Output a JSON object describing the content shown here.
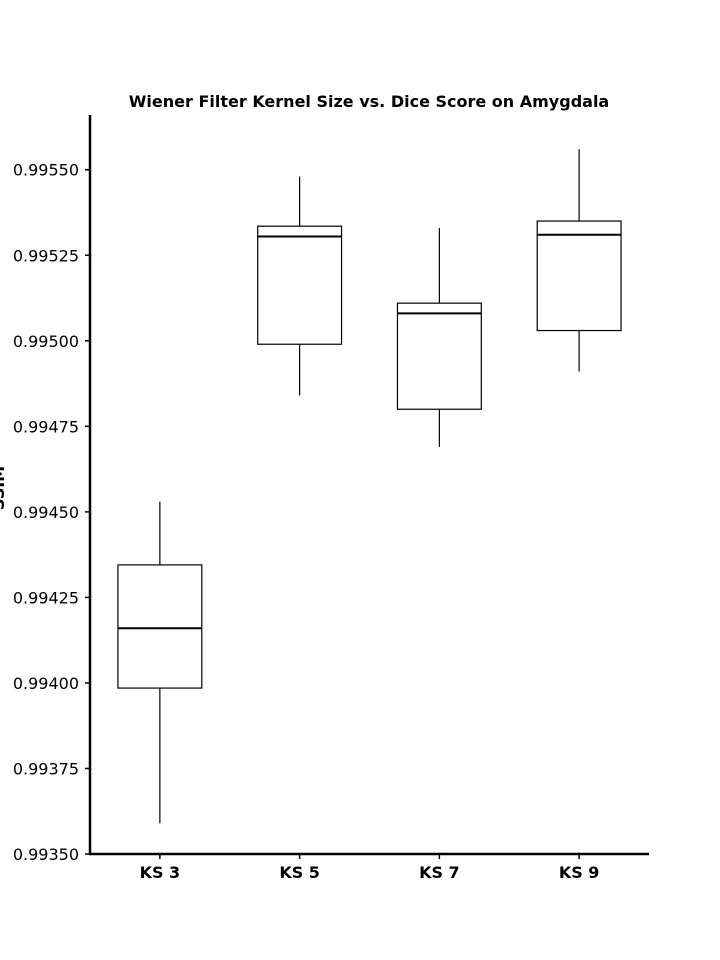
{
  "chart_data": {
    "type": "box",
    "title": "Wiener Filter Kernel Size vs. Dice Score on Amygdala",
    "xlabel": "",
    "ylabel": "SSIM",
    "ylim": [
      0.9935,
      0.99566
    ],
    "yticks": [
      "0.99350",
      "0.99375",
      "0.99400",
      "0.99425",
      "0.99450",
      "0.99475",
      "0.99500",
      "0.99525",
      "0.99550"
    ],
    "ytick_values": [
      0.9935,
      0.99375,
      0.994,
      0.99425,
      0.9945,
      0.99475,
      0.995,
      0.99525,
      0.9955
    ],
    "categories": [
      "KS 3",
      "KS 5",
      "KS 7",
      "KS 9"
    ],
    "boxes": [
      {
        "category": "KS 3",
        "whisker_low": 0.99359,
        "q1": 0.993985,
        "median": 0.99416,
        "q3": 0.994345,
        "whisker_high": 0.99453
      },
      {
        "category": "KS 5",
        "whisker_low": 0.99484,
        "q1": 0.99499,
        "median": 0.995305,
        "q3": 0.995335,
        "whisker_high": 0.99548
      },
      {
        "category": "KS 7",
        "whisker_low": 0.99469,
        "q1": 0.9948,
        "median": 0.99508,
        "q3": 0.99511,
        "whisker_high": 0.99533
      },
      {
        "category": "KS 9",
        "whisker_low": 0.99491,
        "q1": 0.99503,
        "median": 0.99531,
        "q3": 0.99535,
        "whisker_high": 0.99556
      }
    ],
    "grid": false,
    "legend": "none",
    "colors": {
      "box_fill": "#ffffff",
      "stroke": "#000000"
    }
  }
}
